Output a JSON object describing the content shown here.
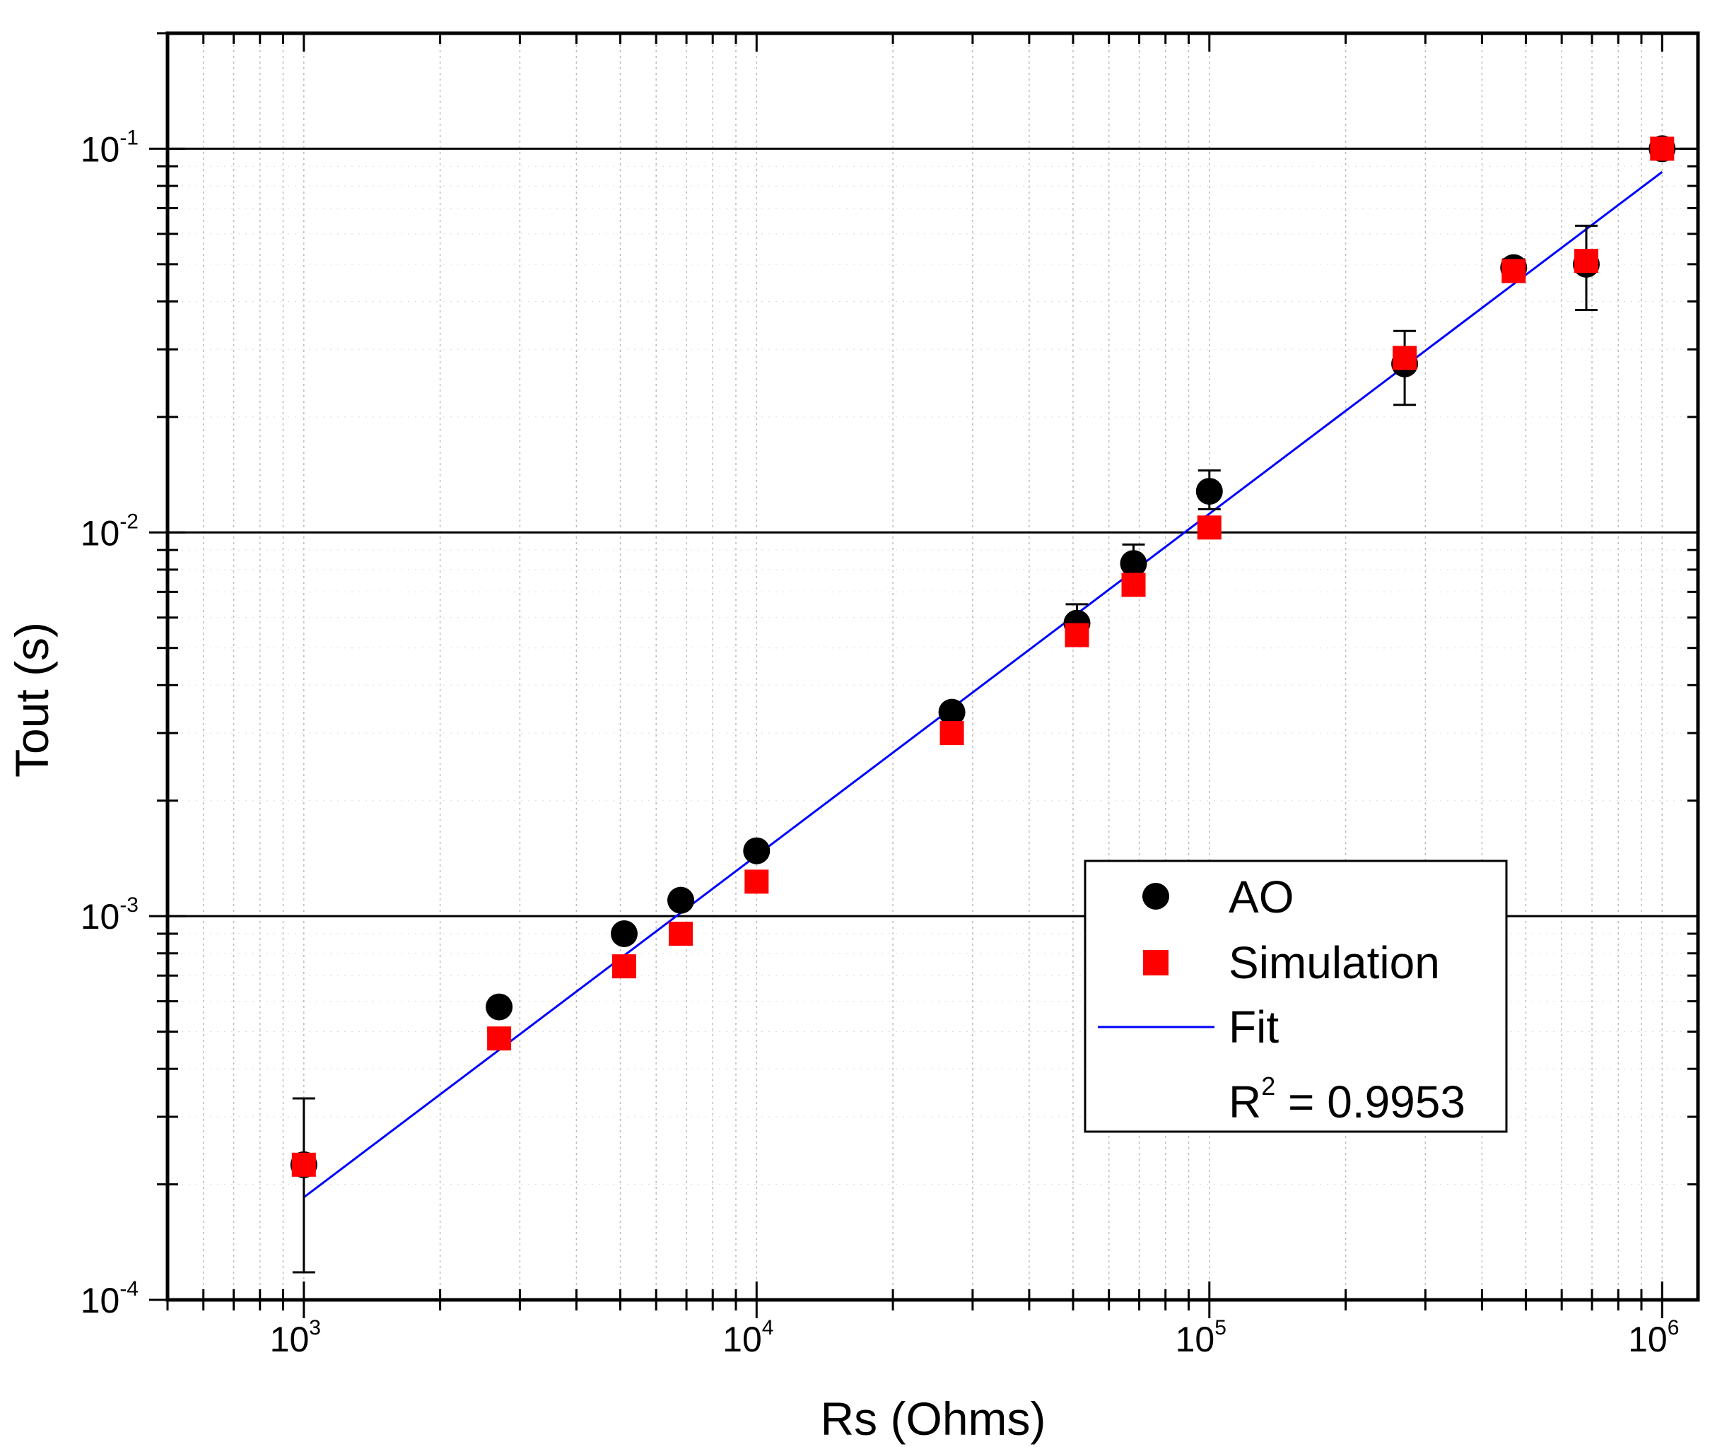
{
  "chart_data": {
    "type": "scatter",
    "xscale": "log",
    "yscale": "log",
    "xlabel": "Rs (Ohms)",
    "ylabel": "Tout (s)",
    "xlim": [
      500,
      1200000
    ],
    "ylim": [
      0.0001,
      0.2
    ],
    "x_ticks": [
      {
        "value": 1000,
        "base": "10",
        "exp": "3"
      },
      {
        "value": 10000,
        "base": "10",
        "exp": "4"
      },
      {
        "value": 100000,
        "base": "10",
        "exp": "5"
      },
      {
        "value": 1000000,
        "base": "10",
        "exp": "6"
      }
    ],
    "y_ticks": [
      {
        "value": 0.0001,
        "base": "10",
        "exp": "-4"
      },
      {
        "value": 0.001,
        "base": "10",
        "exp": "-3"
      },
      {
        "value": 0.01,
        "base": "10",
        "exp": "-2"
      },
      {
        "value": 0.1,
        "base": "10",
        "exp": "-1"
      }
    ],
    "series": [
      {
        "name": "AO",
        "marker": "circle",
        "color": "#000000",
        "points": [
          {
            "x": 1000,
            "y": 0.000225,
            "err_low": 0.000118,
            "err_high": 0.000335
          },
          {
            "x": 2700,
            "y": 0.00058
          },
          {
            "x": 5100,
            "y": 0.0009
          },
          {
            "x": 6800,
            "y": 0.0011
          },
          {
            "x": 10000,
            "y": 0.00148
          },
          {
            "x": 27000,
            "y": 0.0034
          },
          {
            "x": 51000,
            "y": 0.0058,
            "err_low": 0.0051,
            "err_high": 0.0065
          },
          {
            "x": 68000,
            "y": 0.0083,
            "err_low": 0.0074,
            "err_high": 0.0093
          },
          {
            "x": 100000,
            "y": 0.0128,
            "err_low": 0.0115,
            "err_high": 0.0145
          },
          {
            "x": 270000,
            "y": 0.0275,
            "err_low": 0.0215,
            "err_high": 0.0335
          },
          {
            "x": 470000,
            "y": 0.049,
            "err_low": 0.0465,
            "err_high": 0.0515
          },
          {
            "x": 680000,
            "y": 0.05,
            "err_low": 0.038,
            "err_high": 0.063
          },
          {
            "x": 1000000,
            "y": 0.1,
            "err_low": 0.095,
            "err_high": 0.105
          }
        ]
      },
      {
        "name": "Simulation",
        "marker": "square",
        "color": "#ff0000",
        "points": [
          {
            "x": 1000,
            "y": 0.000225
          },
          {
            "x": 2700,
            "y": 0.00048
          },
          {
            "x": 5100,
            "y": 0.00074
          },
          {
            "x": 6800,
            "y": 0.0009
          },
          {
            "x": 10000,
            "y": 0.00123
          },
          {
            "x": 27000,
            "y": 0.003
          },
          {
            "x": 51000,
            "y": 0.0054
          },
          {
            "x": 68000,
            "y": 0.0073
          },
          {
            "x": 100000,
            "y": 0.0103
          },
          {
            "x": 270000,
            "y": 0.0285
          },
          {
            "x": 470000,
            "y": 0.048
          },
          {
            "x": 680000,
            "y": 0.051
          },
          {
            "x": 1000000,
            "y": 0.1
          }
        ]
      },
      {
        "name": "Fit",
        "type": "line",
        "color": "#0000ff",
        "x": [
          1000,
          1000000
        ],
        "y": [
          0.000185,
          0.087
        ]
      }
    ],
    "legend": {
      "position": "bottom-right",
      "entries": [
        "AO",
        "Simulation",
        "Fit"
      ],
      "r2_label": "R",
      "r2_sup": "2",
      "r2_value": " = 0.9953"
    },
    "grid": {
      "major_y": true,
      "minor_dotted": true
    }
  }
}
